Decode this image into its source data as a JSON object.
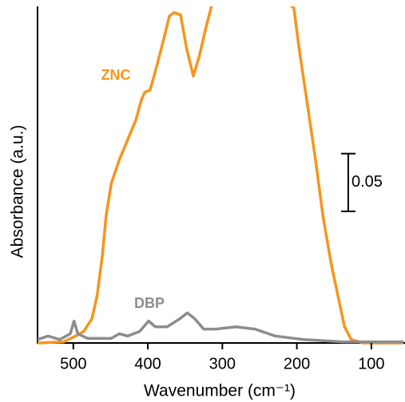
{
  "chart_data": {
    "type": "line",
    "x_label": "Wavenumber (cm⁻¹)",
    "y_label": "Absorbance (a.u.)",
    "xlim": [
      548,
      57
    ],
    "ylim": [
      0,
      0.29
    ],
    "xticks": [
      500,
      400,
      300,
      200,
      100
    ],
    "scale_bar": 0.05,
    "series": [
      {
        "name": "ZNC",
        "color": "#f7941d",
        "x": [
          548,
          513,
          497,
          486,
          475,
          468,
          461,
          456,
          449,
          438,
          427,
          416,
          409,
          404,
          397,
          390,
          379,
          371,
          365,
          356,
          348,
          339,
          331,
          322,
          314,
          277,
          204,
          197,
          186,
          175,
          165,
          154,
          143,
          136,
          127,
          111,
          57
        ],
        "values": [
          0,
          0.001,
          0.006,
          0.01,
          0.021,
          0.041,
          0.076,
          0.11,
          0.138,
          0.159,
          0.176,
          0.193,
          0.21,
          0.217,
          0.219,
          0.235,
          0.262,
          0.283,
          0.286,
          0.284,
          0.255,
          0.231,
          0.248,
          0.273,
          0.293,
          0.33,
          0.29,
          0.255,
          0.207,
          0.159,
          0.11,
          0.069,
          0.035,
          0.014,
          0.003,
          0,
          0
        ]
      },
      {
        "name": "DBP",
        "color": "#8c8c8c",
        "x": [
          548,
          534,
          518,
          504,
          499,
          494,
          481,
          449,
          438,
          427,
          411,
          399,
          390,
          374,
          357,
          347,
          337,
          325,
          309,
          282,
          256,
          229,
          191,
          138,
          57
        ],
        "values": [
          0.003,
          0.006,
          0.003,
          0.008,
          0.019,
          0.008,
          0.004,
          0.004,
          0.008,
          0.006,
          0.01,
          0.019,
          0.014,
          0.014,
          0.021,
          0.026,
          0.021,
          0.012,
          0.012,
          0.014,
          0.012,
          0.006,
          0.003,
          0.001,
          0.001
        ]
      }
    ]
  }
}
